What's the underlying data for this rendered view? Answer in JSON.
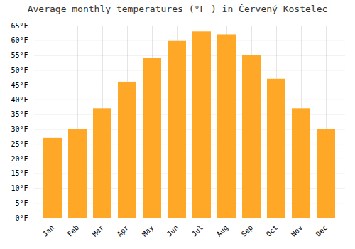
{
  "chart_data": {
    "type": "bar",
    "title": "Average monthly temperatures (°F ) in Červený Kostelec",
    "categories": [
      "Jan",
      "Feb",
      "Mar",
      "Apr",
      "May",
      "Jun",
      "Jul",
      "Aug",
      "Sep",
      "Oct",
      "Nov",
      "Dec"
    ],
    "values": [
      27,
      30,
      37,
      46,
      54,
      60,
      63,
      62,
      55,
      47,
      37,
      30
    ],
    "color": "#FFA726",
    "ylim": [
      0,
      65
    ],
    "yticks": [
      {
        "value": 0,
        "label": "0°F"
      },
      {
        "value": 5,
        "label": "5°F"
      },
      {
        "value": 10,
        "label": "10°F"
      },
      {
        "value": 15,
        "label": "15°F"
      },
      {
        "value": 20,
        "label": "20°F"
      },
      {
        "value": 25,
        "label": "25°F"
      },
      {
        "value": 30,
        "label": "30°F"
      },
      {
        "value": 35,
        "label": "35°F"
      },
      {
        "value": 40,
        "label": "40°F"
      },
      {
        "value": 45,
        "label": "45°F"
      },
      {
        "value": 50,
        "label": "50°F"
      },
      {
        "value": 55,
        "label": "55°F"
      },
      {
        "value": 60,
        "label": "60°F"
      },
      {
        "value": 65,
        "label": "65°F"
      }
    ],
    "grid": true
  }
}
